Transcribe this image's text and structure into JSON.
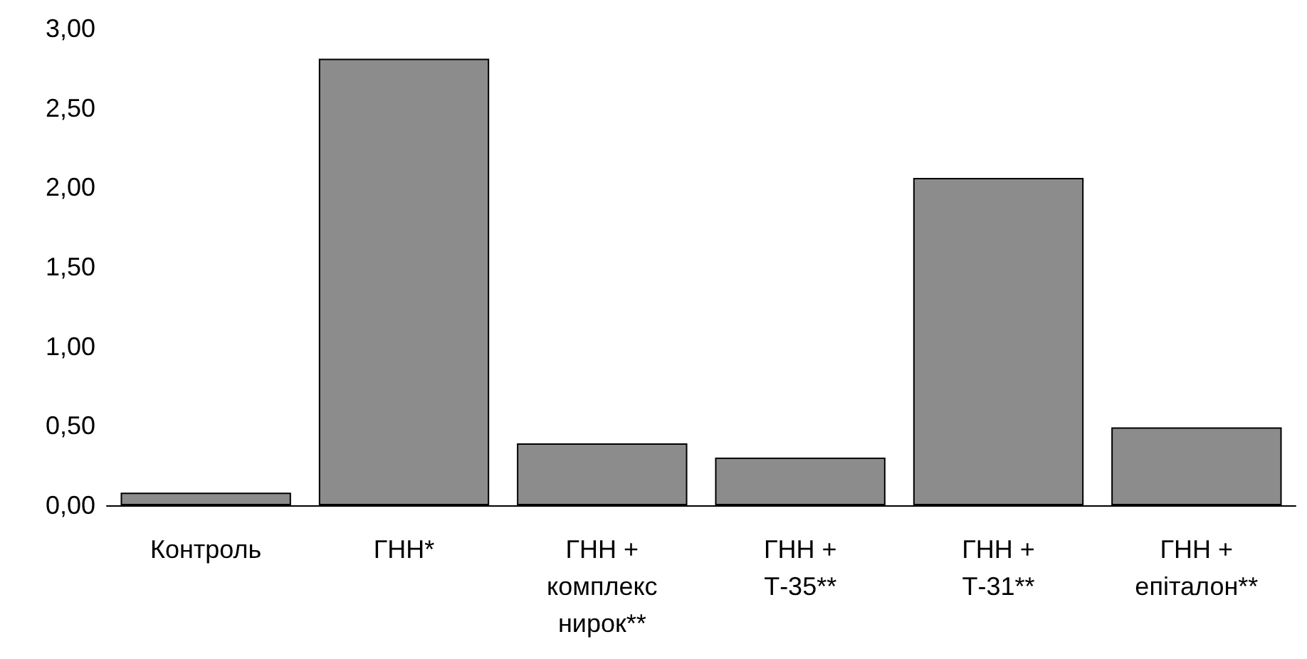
{
  "chart_data": {
    "type": "bar",
    "categories": [
      "Контроль",
      "ГНН*",
      "ГНН +\nкомплекс\nнирок**",
      "ГНН +\nТ-35**",
      "ГНН +\nТ-31**",
      "ГНН +\nепіталон**"
    ],
    "values": [
      0.08,
      2.81,
      0.39,
      0.3,
      2.06,
      0.49
    ],
    "color": "#8c8c8c",
    "ylim": [
      0,
      3
    ],
    "yticks": [
      {
        "value": 0,
        "label": "0,00"
      },
      {
        "value": 0.5,
        "label": "0,50"
      },
      {
        "value": 1,
        "label": "1,00"
      },
      {
        "value": 1.5,
        "label": "1,50"
      },
      {
        "value": 2,
        "label": "2,00"
      },
      {
        "value": 2.5,
        "label": "2,50"
      },
      {
        "value": 3,
        "label": "3,00"
      }
    ],
    "grid": false
  }
}
